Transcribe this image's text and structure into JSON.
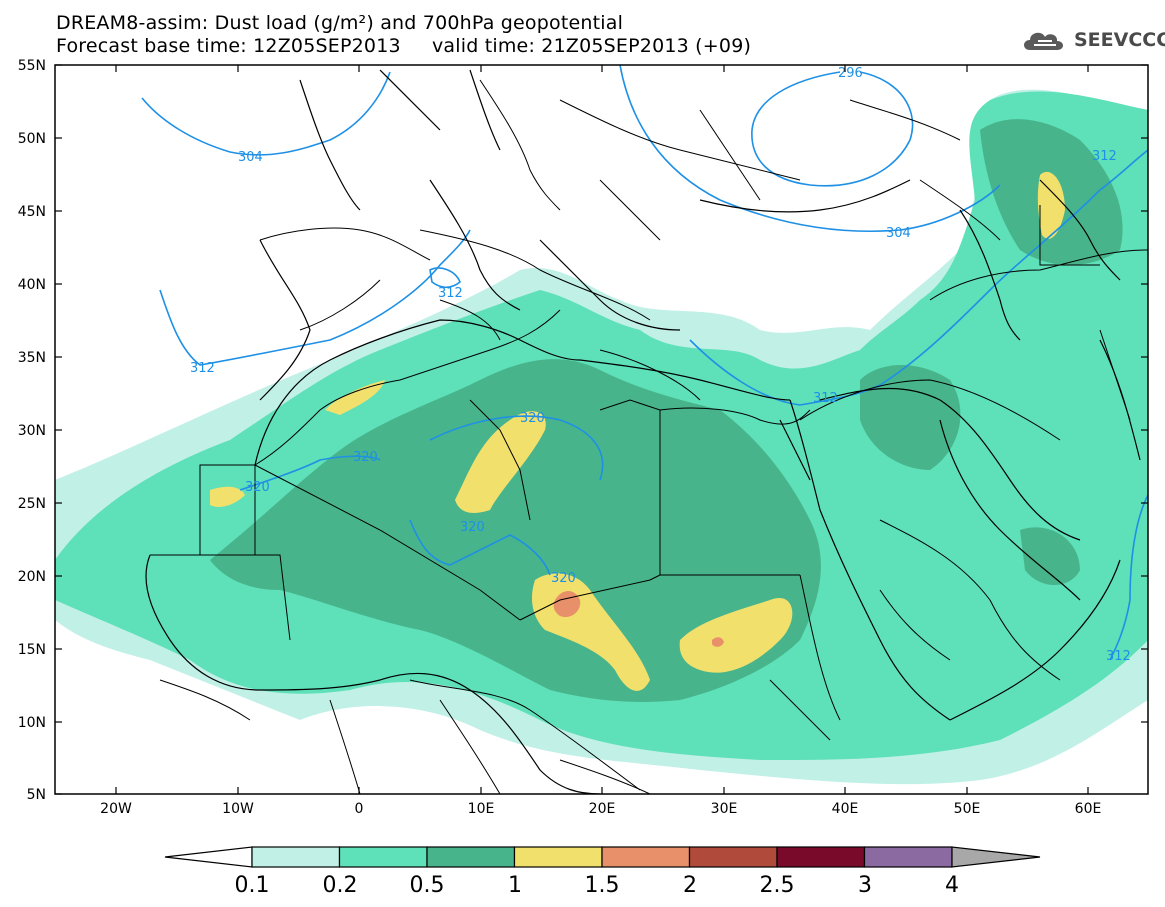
{
  "title_line1": "DREAM8-assim: Dust load (g/m²) and 700hPa geopotential",
  "title_line2": "Forecast base time: 12Z05SEP2013     valid time: 21Z05SEP2013 (+09)",
  "logo_text": "SEEVCCC",
  "axes": {
    "lat_labels": [
      "55N",
      "50N",
      "45N",
      "40N",
      "35N",
      "30N",
      "25N",
      "20N",
      "15N",
      "10N",
      "5N"
    ],
    "lon_labels": [
      "20W",
      "10W",
      "0",
      "10E",
      "20E",
      "30E",
      "40E",
      "50E",
      "60E"
    ]
  },
  "contour_labels": [
    "296",
    "304",
    "304",
    "312",
    "312",
    "312",
    "320",
    "320",
    "320",
    "320",
    "320",
    "312",
    "312"
  ],
  "colorbar": {
    "ticks": [
      "0.1",
      "0.2",
      "0.5",
      "1",
      "1.5",
      "2",
      "2.5",
      "3",
      "4"
    ],
    "colors": [
      "#c0f0e6",
      "#5ee0b8",
      "#48b48c",
      "#f2e06c",
      "#e8906a",
      "#b04a3a",
      "#7a0a2a",
      "#8a6aa0",
      "#a8a8a8"
    ]
  },
  "colors": {
    "class_0_1": "#c0f0e6",
    "class_0_2": "#5ee0b8",
    "class_0_5": "#48b48c",
    "class_1": "#f2e06c",
    "class_1_5": "#e8906a",
    "contour": "#1e90e6"
  }
}
